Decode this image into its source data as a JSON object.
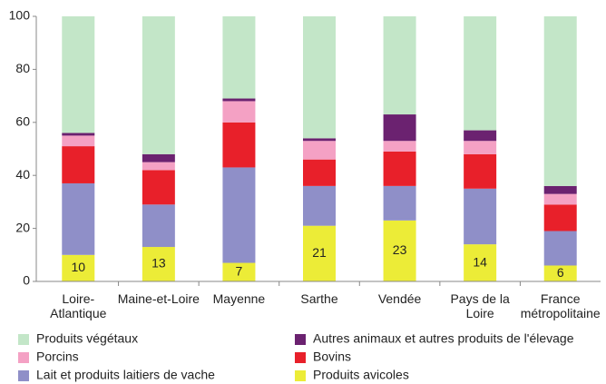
{
  "chart_data": {
    "type": "stacked-bar",
    "categories": [
      "Loire-\nAtlantique",
      "Maine-et-Loire",
      "Mayenne",
      "Sarthe",
      "Vendée",
      "Pays de la\nLoire",
      "France\nmétropolitaine"
    ],
    "series": [
      {
        "name": "Produits avicoles",
        "color": "#ecec37",
        "values": [
          10,
          13,
          7,
          21,
          23,
          14,
          6
        ]
      },
      {
        "name": "Lait et produits laitiers de vache",
        "color": "#8f8fc8",
        "values": [
          27,
          16,
          36,
          15,
          13,
          21,
          13
        ]
      },
      {
        "name": "Bovins",
        "color": "#e8202a",
        "values": [
          14,
          13,
          17,
          10,
          13,
          13,
          10
        ]
      },
      {
        "name": "Porcins",
        "color": "#f4a1c4",
        "values": [
          4,
          3,
          8,
          7,
          4,
          5,
          4
        ]
      },
      {
        "name": "Autres animaux et autres produits de l'élevage",
        "color": "#6b2270",
        "values": [
          1,
          3,
          1,
          1,
          10,
          4,
          3
        ]
      },
      {
        "name": "Produits végétaux",
        "color": "#c3e6c8",
        "values": [
          44,
          52,
          31,
          46,
          37,
          43,
          64
        ]
      }
    ],
    "ylim": [
      0,
      100
    ],
    "yticks": [
      0,
      20,
      40,
      60,
      80,
      100
    ]
  }
}
